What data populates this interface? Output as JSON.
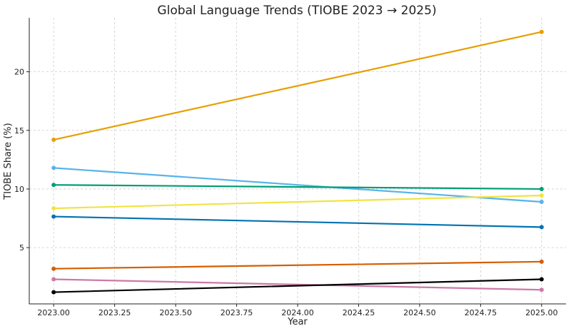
{
  "chart_data": {
    "type": "line",
    "title": "Global Language Trends (TIOBE 2023 → 2025)",
    "xlabel": "Year",
    "ylabel": "TIOBE Share (%)",
    "xlim": [
      2022.9,
      2025.1
    ],
    "ylim": [
      0.2,
      24.6
    ],
    "x": [
      2023,
      2025
    ],
    "xticks": [
      2023.0,
      2023.25,
      2023.5,
      2023.75,
      2024.0,
      2024.25,
      2024.5,
      2024.75,
      2025.0
    ],
    "xtick_labels": [
      "2023.00",
      "2023.25",
      "2023.50",
      "2023.75",
      "2024.00",
      "2024.25",
      "2024.50",
      "2024.75",
      "2025.00"
    ],
    "yticks": [
      5,
      10,
      15,
      20
    ],
    "ytick_labels": [
      "5",
      "10",
      "15",
      "20"
    ],
    "grid": true,
    "legend": "none",
    "series": [
      {
        "color": "#E69F00",
        "values": [
          14.2,
          23.4
        ]
      },
      {
        "color": "#56B4E9",
        "values": [
          11.8,
          8.9
        ]
      },
      {
        "color": "#009E73",
        "values": [
          10.35,
          10.0
        ]
      },
      {
        "color": "#F0E442",
        "values": [
          8.35,
          9.45
        ]
      },
      {
        "color": "#0072B2",
        "values": [
          7.65,
          6.75
        ]
      },
      {
        "color": "#D55E00",
        "values": [
          3.2,
          3.8
        ]
      },
      {
        "color": "#CC79A7",
        "values": [
          2.3,
          1.4
        ]
      },
      {
        "color": "#000000",
        "values": [
          1.2,
          2.3
        ]
      }
    ]
  }
}
